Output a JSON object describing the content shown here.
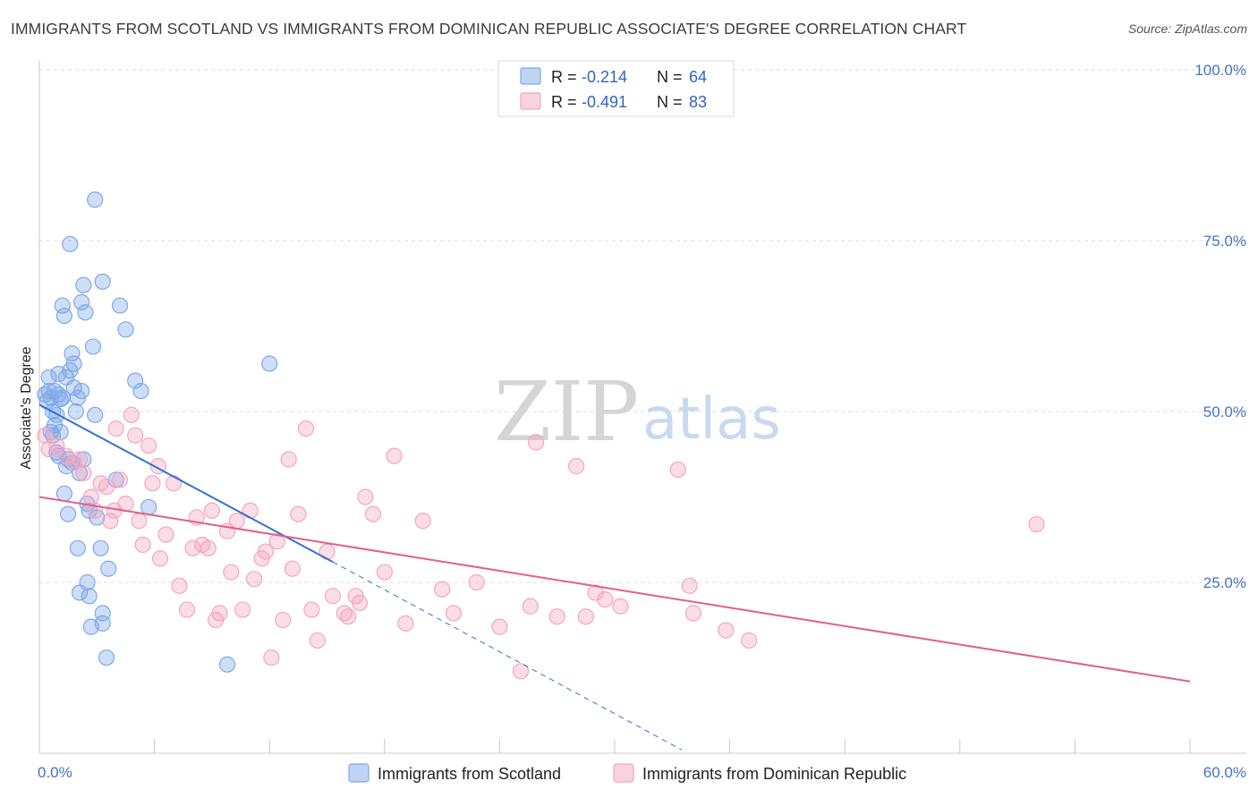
{
  "header": {
    "title": "IMMIGRANTS FROM SCOTLAND VS IMMIGRANTS FROM DOMINICAN REPUBLIC ASSOCIATE'S DEGREE CORRELATION CHART",
    "source": "Source: ZipAtlas.com"
  },
  "watermark": {
    "zip": "ZIP",
    "atlas": "atlas"
  },
  "legend_top": {
    "series": [
      {
        "r_label": "R =",
        "r_value": "-0.214",
        "n_label": "N =",
        "n_value": "64",
        "color": "#7fa9e8"
      },
      {
        "r_label": "R =",
        "r_value": "-0.491",
        "n_label": "N =",
        "n_value": "83",
        "color": "#f4a6bf"
      }
    ]
  },
  "chart_data": {
    "type": "scatter",
    "title": "IMMIGRANTS FROM SCOTLAND VS IMMIGRANTS FROM DOMINICAN REPUBLIC ASSOCIATE'S DEGREE CORRELATION CHART",
    "xlabel": "",
    "ylabel": "Associate's Degree",
    "xlim": [
      0,
      60
    ],
    "ylim": [
      0,
      100
    ],
    "x_tick_labels": [
      "0.0%",
      "60.0%"
    ],
    "y_ticks": [
      25,
      50,
      75,
      100
    ],
    "y_tick_labels": [
      "25.0%",
      "50.0%",
      "75.0%",
      "100.0%"
    ],
    "grid": true,
    "legend_placement": "bottom-center",
    "series": [
      {
        "name": "Immigrants from Scotland",
        "color": "#7fa9e8",
        "line_color": "#2f72d4",
        "trend": {
          "x0": 0,
          "y0": 51,
          "x1": 15.3,
          "y1": 28,
          "dash_to_x": 33.5,
          "dash_to_y": 0.5
        },
        "points": [
          [
            0.3,
            52.5
          ],
          [
            0.4,
            51.5
          ],
          [
            0.5,
            55
          ],
          [
            0.5,
            53
          ],
          [
            0.6,
            52
          ],
          [
            0.7,
            50
          ],
          [
            0.7,
            46.5
          ],
          [
            0.8,
            53
          ],
          [
            0.8,
            48
          ],
          [
            0.9,
            44
          ],
          [
            1.0,
            55.5
          ],
          [
            1.0,
            43.5
          ],
          [
            1.1,
            47
          ],
          [
            1.2,
            52
          ],
          [
            1.2,
            65.5
          ],
          [
            1.3,
            38
          ],
          [
            1.3,
            64
          ],
          [
            1.4,
            55
          ],
          [
            1.5,
            35
          ],
          [
            1.5,
            43
          ],
          [
            1.6,
            74.5
          ],
          [
            1.6,
            56
          ],
          [
            1.7,
            58.5
          ],
          [
            1.7,
            42.5
          ],
          [
            1.8,
            57
          ],
          [
            1.9,
            50
          ],
          [
            2.0,
            30
          ],
          [
            2.1,
            41
          ],
          [
            2.1,
            23.5
          ],
          [
            2.2,
            66
          ],
          [
            2.2,
            53
          ],
          [
            2.3,
            43
          ],
          [
            2.3,
            68.5
          ],
          [
            2.4,
            64.5
          ],
          [
            2.5,
            36.5
          ],
          [
            2.5,
            25
          ],
          [
            2.6,
            35.5
          ],
          [
            2.6,
            23
          ],
          [
            2.7,
            18.5
          ],
          [
            2.8,
            59.5
          ],
          [
            2.9,
            49.5
          ],
          [
            2.9,
            81
          ],
          [
            3.0,
            34.5
          ],
          [
            3.2,
            30
          ],
          [
            3.3,
            20.5
          ],
          [
            3.3,
            19
          ],
          [
            3.3,
            69
          ],
          [
            3.5,
            14
          ],
          [
            3.6,
            27
          ],
          [
            4.0,
            40
          ],
          [
            4.2,
            65.5
          ],
          [
            4.5,
            62
          ],
          [
            5.0,
            54.5
          ],
          [
            5.3,
            53
          ],
          [
            5.7,
            36
          ],
          [
            9.8,
            13
          ],
          [
            12.0,
            57
          ],
          [
            1.0,
            52.5
          ],
          [
            0.9,
            49.5
          ],
          [
            1.1,
            51.8
          ],
          [
            1.8,
            53.5
          ],
          [
            0.6,
            47
          ],
          [
            1.4,
            42
          ],
          [
            2.0,
            52
          ]
        ]
      },
      {
        "name": "Immigrants from Dominican Republic",
        "color": "#f4a6bf",
        "line_color": "#e0608a",
        "trend": {
          "x0": 0,
          "y0": 37.5,
          "x1": 60,
          "y1": 10.5
        },
        "points": [
          [
            0.3,
            46.5
          ],
          [
            0.5,
            44.5
          ],
          [
            0.9,
            45
          ],
          [
            1.4,
            43.5
          ],
          [
            1.8,
            42.5
          ],
          [
            2.1,
            43
          ],
          [
            2.3,
            41
          ],
          [
            2.7,
            37.5
          ],
          [
            2.9,
            35.5
          ],
          [
            3.2,
            39.5
          ],
          [
            3.5,
            39
          ],
          [
            3.7,
            34
          ],
          [
            3.9,
            35.5
          ],
          [
            4.0,
            47.5
          ],
          [
            4.2,
            40
          ],
          [
            4.5,
            36.5
          ],
          [
            4.8,
            49.5
          ],
          [
            5.0,
            46.5
          ],
          [
            5.2,
            34
          ],
          [
            5.4,
            30.5
          ],
          [
            5.7,
            45
          ],
          [
            5.9,
            39.5
          ],
          [
            6.2,
            42
          ],
          [
            6.3,
            28.5
          ],
          [
            6.6,
            32
          ],
          [
            7.0,
            39.5
          ],
          [
            7.3,
            24.5
          ],
          [
            7.7,
            21
          ],
          [
            8.0,
            30
          ],
          [
            8.2,
            34.5
          ],
          [
            8.5,
            30.5
          ],
          [
            8.8,
            30
          ],
          [
            9.0,
            35.5
          ],
          [
            9.2,
            19.5
          ],
          [
            9.4,
            20.5
          ],
          [
            9.8,
            32.5
          ],
          [
            10.0,
            26.5
          ],
          [
            10.3,
            34
          ],
          [
            10.6,
            21
          ],
          [
            11.0,
            35.5
          ],
          [
            11.2,
            25.5
          ],
          [
            11.6,
            28.5
          ],
          [
            11.8,
            29.5
          ],
          [
            12.1,
            14
          ],
          [
            12.4,
            31
          ],
          [
            12.7,
            19.5
          ],
          [
            13.0,
            43
          ],
          [
            13.2,
            27
          ],
          [
            13.5,
            35
          ],
          [
            13.9,
            47.5
          ],
          [
            14.2,
            21
          ],
          [
            14.5,
            16.5
          ],
          [
            15.0,
            29.5
          ],
          [
            15.3,
            23
          ],
          [
            16.1,
            20
          ],
          [
            16.5,
            23
          ],
          [
            16.7,
            22
          ],
          [
            17.0,
            37.5
          ],
          [
            17.4,
            35
          ],
          [
            18.0,
            26.5
          ],
          [
            18.5,
            43.5
          ],
          [
            19.1,
            19
          ],
          [
            20.0,
            34
          ],
          [
            21.0,
            24
          ],
          [
            21.6,
            20.5
          ],
          [
            22.8,
            25
          ],
          [
            24.0,
            18.5
          ],
          [
            25.1,
            12
          ],
          [
            25.6,
            21.5
          ],
          [
            25.9,
            45.5
          ],
          [
            27.0,
            20
          ],
          [
            28.0,
            42
          ],
          [
            28.5,
            20
          ],
          [
            29.0,
            23.5
          ],
          [
            29.5,
            22.5
          ],
          [
            30.3,
            21.5
          ],
          [
            33.3,
            41.5
          ],
          [
            33.9,
            24.5
          ],
          [
            34.1,
            20.5
          ],
          [
            35.8,
            18
          ],
          [
            37.0,
            16.5
          ],
          [
            52.0,
            33.5
          ],
          [
            15.9,
            20.5
          ]
        ]
      }
    ]
  }
}
